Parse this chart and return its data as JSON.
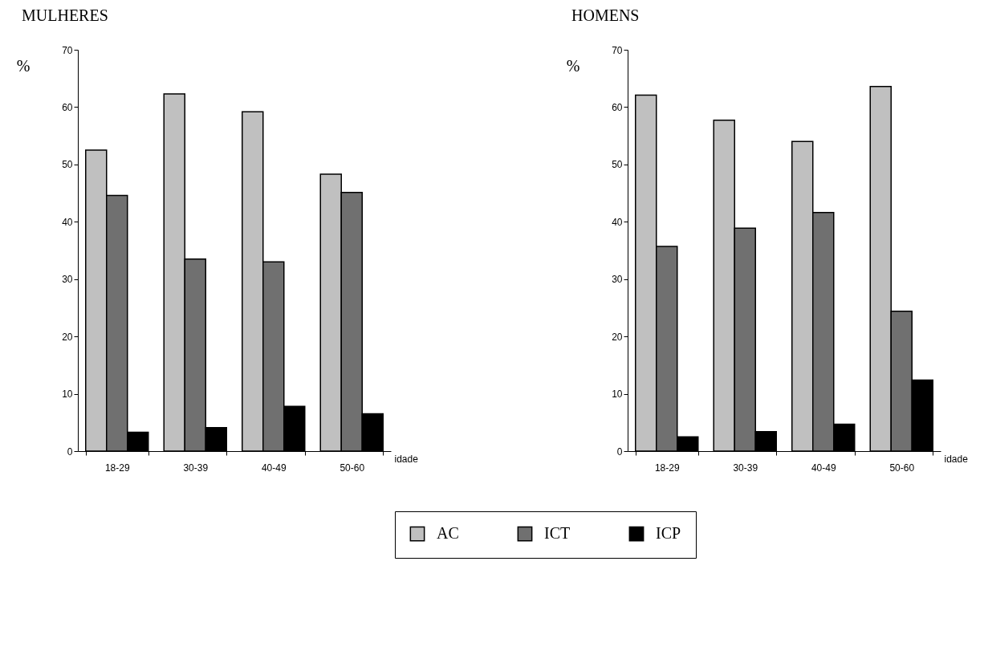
{
  "chart_data": [
    {
      "type": "bar",
      "title": "MULHERES",
      "ylabel": "%",
      "xlabel": "idade",
      "categories": [
        "18-29",
        "30-39",
        "40-49",
        "50-60"
      ],
      "ylim": [
        0,
        70
      ],
      "yticks": [
        0,
        10,
        20,
        30,
        40,
        50,
        60,
        70
      ],
      "grid": false,
      "series": [
        {
          "color": "#c0c0c0",
          "values": [
            52.5,
            62.3,
            59.2,
            48.3
          ]
        },
        {
          "color": "#707070",
          "values": [
            44.6,
            33.5,
            33.0,
            45.1
          ]
        },
        {
          "color": "#000000",
          "values": [
            3.3,
            4.1,
            7.8,
            6.5
          ]
        }
      ]
    },
    {
      "type": "bar",
      "title": "HOMENS",
      "ylabel": "%",
      "xlabel": "idade",
      "categories": [
        "18-29",
        "30-39",
        "40-49",
        "50-60"
      ],
      "ylim": [
        0,
        70
      ],
      "yticks": [
        0,
        10,
        20,
        30,
        40,
        50,
        60,
        70
      ],
      "grid": false,
      "legend": "bottom",
      "series": [
        {
          "name": "AC",
          "color": "#c0c0c0",
          "values": [
            62.1,
            57.7,
            54.0,
            63.6
          ]
        },
        {
          "name": "ICT",
          "color": "#707070",
          "values": [
            35.7,
            38.9,
            41.6,
            24.4
          ]
        },
        {
          "name": "ICP",
          "color": "#000000",
          "values": [
            2.5,
            3.4,
            4.7,
            12.4
          ]
        }
      ]
    }
  ]
}
